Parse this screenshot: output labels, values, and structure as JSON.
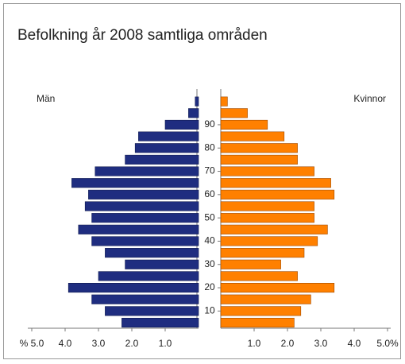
{
  "chart_data": {
    "type": "pyramid",
    "title": "Befolkning år 2008 samtliga områden",
    "categories": [
      null,
      null,
      null,
      null,
      null,
      null,
      null,
      null,
      null,
      null,
      null,
      null,
      null,
      null,
      null,
      null,
      null,
      null,
      null,
      null
    ],
    "age_labels": [
      10,
      20,
      30,
      40,
      50,
      60,
      70,
      80,
      90
    ],
    "series": [
      {
        "name": "Män",
        "color": "#1f2d80",
        "values": [
          2.3,
          2.8,
          3.2,
          3.9,
          3.0,
          2.2,
          2.8,
          3.2,
          3.6,
          3.2,
          3.4,
          3.3,
          3.8,
          3.1,
          2.2,
          1.9,
          1.8,
          1.0,
          0.3,
          0.1
        ],
        "xlim": [
          0,
          5
        ],
        "xticks": [
          {
            "value": 5,
            "label": "% 5.0"
          },
          {
            "value": 4,
            "label": "4.0"
          },
          {
            "value": 3,
            "label": "3.0"
          },
          {
            "value": 2,
            "label": "2.0"
          },
          {
            "value": 1,
            "label": "1.0"
          }
        ]
      },
      {
        "name": "Kvinnor",
        "color": "#ff8000",
        "values": [
          2.2,
          2.4,
          2.7,
          3.4,
          2.3,
          1.8,
          2.5,
          2.9,
          3.2,
          2.8,
          2.8,
          3.4,
          3.3,
          2.8,
          2.3,
          2.3,
          1.9,
          1.4,
          0.8,
          0.2
        ],
        "xlim": [
          0,
          5
        ],
        "xticks": [
          {
            "value": 1,
            "label": "1.0"
          },
          {
            "value": 2,
            "label": "2.0"
          },
          {
            "value": 3,
            "label": "3.0"
          },
          {
            "value": 4,
            "label": "4.0"
          },
          {
            "value": 5,
            "label": "5.0%"
          }
        ]
      }
    ]
  }
}
